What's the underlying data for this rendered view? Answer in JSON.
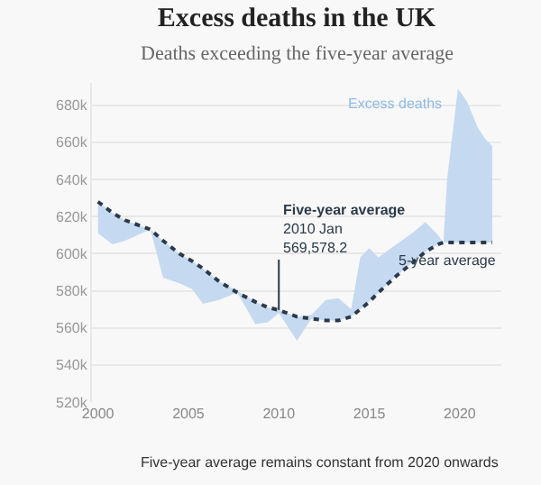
{
  "chart_data": {
    "type": "line",
    "title": "Excess deaths in the UK",
    "subtitle": "Deaths exceeding the five-year average",
    "x": [
      2000,
      2000.8,
      2001.5,
      2002.9,
      2003.6,
      2004.5,
      2005.2,
      2005.8,
      2006.7,
      2007.7,
      2008.7,
      2009.4,
      2010,
      2011,
      2011.8,
      2012.6,
      2013.3,
      2014,
      2014.5,
      2015,
      2015.5,
      2016.5,
      2017.5,
      2018.1,
      2018.8,
      2019.1,
      2019.3,
      2019.9,
      2020.4,
      2021,
      2021.4,
      2021.8
    ],
    "series": [
      {
        "name": "5-year average",
        "color": "#2b3a4a",
        "line_style": "dotted",
        "values": [
          628000,
          622000,
          618000,
          613000,
          607000,
          600000,
          596000,
          592000,
          585000,
          579000,
          574000,
          571000,
          569578.2,
          566000,
          565000,
          564000,
          564000,
          566000,
          570000,
          574000,
          579000,
          588000,
          596000,
          601000,
          605000,
          606000,
          606000,
          606000,
          606000,
          606000,
          606000,
          606000
        ],
        "lower": [
          611000,
          605000,
          607000,
          613000,
          587000,
          584000,
          581000,
          573000,
          575000,
          579000,
          562000,
          563000,
          568000,
          553000,
          565000,
          564000,
          564000,
          566000,
          570000,
          574000,
          579000,
          588000,
          596000,
          601000,
          605000,
          606000,
          606000,
          606000,
          606000,
          606000,
          606000,
          606000
        ],
        "upper": [
          628000,
          622000,
          618000,
          613000,
          607000,
          600000,
          596000,
          592000,
          585000,
          580000,
          574000,
          571000,
          569578.2,
          566000,
          567000,
          575000,
          576000,
          570000,
          598000,
          603000,
          598000,
          605000,
          612000,
          617000,
          610000,
          606000,
          640000,
          689000,
          682000,
          668000,
          662000,
          658000
        ]
      }
    ],
    "xlim": [
      1999.67,
      2022.3
    ],
    "xticks": [
      2000,
      2005,
      2010,
      2015,
      2020
    ],
    "ylim": [
      520000,
      692000
    ],
    "yticks": [
      {
        "value": 520000,
        "label": "520k"
      },
      {
        "value": 540000,
        "label": "540k"
      },
      {
        "value": 560000,
        "label": "560k"
      },
      {
        "value": 580000,
        "label": "580k"
      },
      {
        "value": 600000,
        "label": "600k"
      },
      {
        "value": 620000,
        "label": "620k"
      },
      {
        "value": 640000,
        "label": "640k"
      },
      {
        "value": 660000,
        "label": "660k"
      },
      {
        "value": 680000,
        "label": "680k"
      }
    ],
    "grid": "y",
    "legend": false,
    "annotations": [
      {
        "text": "Excess deaths",
        "x": 2019.9,
        "y": 689000
      },
      {
        "text": "Five-year average\n2010 Jan\n569,578.2",
        "x": 2010,
        "y": 569578.2
      },
      "Five-year average remains constant from 2020 onwards"
    ]
  }
}
